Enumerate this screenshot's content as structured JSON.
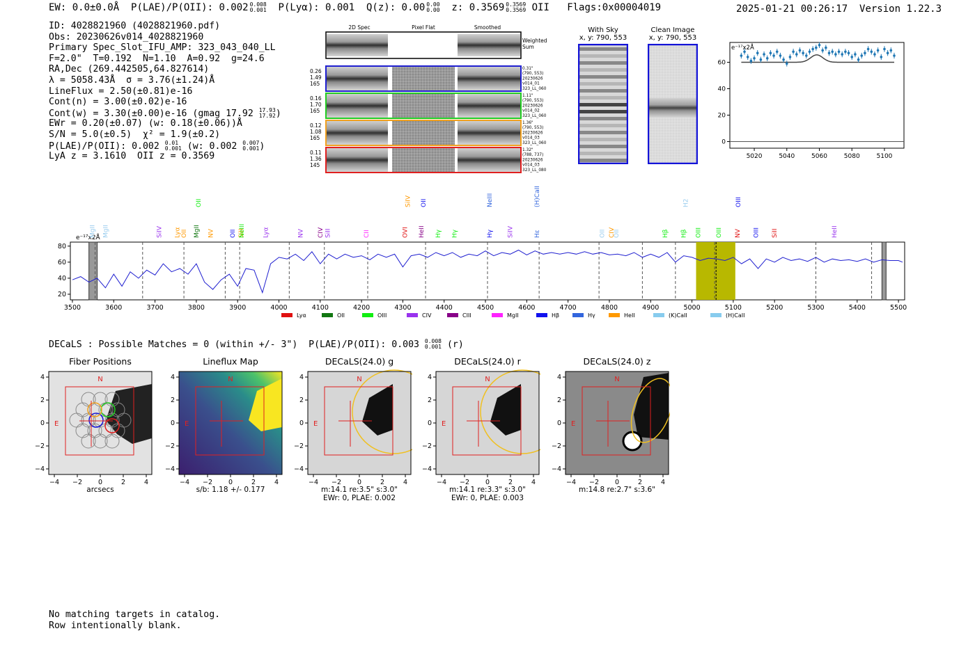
{
  "header": {
    "ew": "EW: 0.0±0.0Å",
    "plae_label": "P(LAE)/P(OII): 0.002",
    "plae_hi": "0.008",
    "plae_lo": "0.001",
    "plya": "P(Lyα): 0.001",
    "qz_label": "Q(z): 0.00",
    "qz_hi": "0.00",
    "qz_lo": "0.00",
    "z_label": "z: 0.3569",
    "z_hi": "0.3569",
    "z_lo": "0.3569",
    "z_line": "OII",
    "flags": "Flags:0x00004019",
    "datetime": "2025-01-21 00:26:17",
    "version": "Version 1.22.3"
  },
  "info": {
    "id": "ID: 4028821960 (4028821960.pdf)",
    "obs": "Obs: 20230626v014_4028821960",
    "primary": "Primary Spec_Slot_IFU_AMP: 323_043_040_LL",
    "params": "F=2.0\"  T=0.192  N=1.10  A=0.92  g=24.6",
    "radec": "RA,Dec (269.442505,64.827614)",
    "lambda": "λ = 5058.43Å  σ = 3.76(±1.24)Å",
    "lineflux": "LineFlux = 2.50(±0.81)e-16",
    "contn": "Cont(n) = 3.00(±0.02)e-16",
    "contw": "Cont(w) = 3.30(±0.00)e-16 (gmag 17.92",
    "contw_hi": "17.93",
    "contw_lo": "17.92",
    "contw_end": ")",
    "ewr": "EWr = 0.20(±0.07) (w: 0.18(±0.06))Å",
    "sn": "S/N = 5.0(±0.5)  χ² = 1.9(±0.2)",
    "plae": "P(LAE)/P(OII): 0.002",
    "plae_hi": "0.01",
    "plae_lo": "0.001",
    "plae_w": "(w: 0.002",
    "plae_w_hi": "0.007",
    "plae_w_lo": "0.001",
    "plae_w_end": ")",
    "z": "LyA z = 3.1610  OII z = 0.3569"
  },
  "cutouts": {
    "col_titles": [
      "2D Spec",
      "Pixel Flat",
      "Smoothed"
    ],
    "weighted_sum": [
      "Weighted",
      "Sum"
    ],
    "rows": [
      {
        "left": [
          "0.26",
          "1.49",
          "165"
        ],
        "right": [
          "0.31\"",
          "(790, 553)",
          "20230626",
          "v014_01",
          "323_LL_060"
        ],
        "color": "#1f1fd0"
      },
      {
        "left": [
          "0.16",
          "1.70",
          "165"
        ],
        "right": [
          "1.11\"",
          "(790, 553)",
          "20230626",
          "v014_02",
          "323_LL_060"
        ],
        "color": "#22cc22"
      },
      {
        "left": [
          "0.12",
          "1.08",
          "165"
        ],
        "right": [
          "1.36\"",
          "(790, 553)",
          "20230626",
          "v014_03",
          "323_LL_060"
        ],
        "color": "#f0a020"
      },
      {
        "left": [
          "0.11",
          "1.36",
          "145"
        ],
        "right": [
          "1.32\"",
          "(788, 737)",
          "20230626",
          "v014_03",
          "323_LL_080"
        ],
        "color": "#e02020"
      }
    ],
    "with_sky": [
      "With Sky",
      "x, y: 790, 553"
    ],
    "clean": [
      "Clean Image",
      "x, y: 790, 553"
    ]
  },
  "colors": {
    "spectrum": "#1f1fd0",
    "highlight": "#b8b800",
    "fit": "#444444",
    "points": "#1f77b4"
  },
  "chart_data": [
    {
      "type": "scatter",
      "title": "",
      "ylabel": "e⁻¹⁷x2Å",
      "xlim": [
        5005,
        5112
      ],
      "ylim": [
        -5,
        75
      ],
      "xticks": [
        5020,
        5040,
        5060,
        5080,
        5100
      ],
      "yticks": [
        0,
        20,
        40,
        60
      ],
      "x": [
        5012,
        5014,
        5016,
        5018,
        5020,
        5022,
        5024,
        5026,
        5028,
        5030,
        5032,
        5034,
        5036,
        5038,
        5040,
        5042,
        5044,
        5046,
        5048,
        5050,
        5052,
        5054,
        5056,
        5058,
        5060,
        5062,
        5064,
        5066,
        5068,
        5070,
        5072,
        5074,
        5076,
        5078,
        5080,
        5082,
        5084,
        5086,
        5088,
        5090,
        5092,
        5094,
        5096,
        5098,
        5100,
        5102,
        5104,
        5106
      ],
      "y": [
        65,
        68,
        64,
        61,
        63,
        67,
        62,
        66,
        63,
        67,
        65,
        68,
        65,
        62,
        59,
        64,
        68,
        66,
        69,
        67,
        65,
        68,
        70,
        71,
        73,
        69,
        71,
        67,
        68,
        66,
        68,
        66,
        68,
        67,
        64,
        66,
        62,
        65,
        67,
        70,
        68,
        66,
        69,
        64,
        70,
        67,
        69,
        65
      ],
      "fit_model": {
        "baseline": 60,
        "amplitude": 5.6,
        "center": 5058.4,
        "sigma": 3.76
      }
    },
    {
      "type": "line",
      "ylabel": "e⁻¹⁷x2Å",
      "xlim": [
        3495,
        5515
      ],
      "ylim": [
        13,
        85
      ],
      "xticks": [
        3500,
        3600,
        3700,
        3800,
        3900,
        4000,
        4100,
        4200,
        4300,
        4400,
        4500,
        4600,
        4700,
        4800,
        4900,
        5000,
        5100,
        5200,
        5300,
        5400,
        5500
      ],
      "yticks": [
        20,
        40,
        60,
        80
      ],
      "highlight_range": [
        5010,
        5105
      ],
      "highlight_center": 5058.4,
      "masked_ranges": [
        [
          3540,
          3560
        ],
        [
          5460,
          5470
        ]
      ],
      "dashed_lines": [
        3555,
        3670,
        3770,
        3870,
        3905,
        4025,
        4110,
        4215,
        4355,
        4505,
        4630,
        4775,
        4880,
        4960,
        5055,
        5300,
        5435
      ],
      "spectrum_x": [
        3500,
        3520,
        3540,
        3560,
        3580,
        3600,
        3620,
        3640,
        3660,
        3680,
        3700,
        3720,
        3740,
        3760,
        3780,
        3800,
        3820,
        3840,
        3860,
        3880,
        3900,
        3920,
        3940,
        3960,
        3980,
        4000,
        4020,
        4040,
        4060,
        4080,
        4100,
        4120,
        4140,
        4160,
        4180,
        4200,
        4220,
        4240,
        4260,
        4280,
        4300,
        4320,
        4340,
        4360,
        4380,
        4400,
        4420,
        4440,
        4460,
        4480,
        4500,
        4520,
        4540,
        4560,
        4580,
        4600,
        4620,
        4640,
        4660,
        4680,
        4700,
        4720,
        4740,
        4760,
        4780,
        4800,
        4820,
        4840,
        4860,
        4880,
        4900,
        4920,
        4940,
        4960,
        4980,
        5000,
        5020,
        5040,
        5060,
        5080,
        5100,
        5120,
        5140,
        5160,
        5180,
        5200,
        5220,
        5240,
        5260,
        5280,
        5300,
        5320,
        5340,
        5360,
        5380,
        5400,
        5420,
        5440,
        5460,
        5480,
        5500,
        5510
      ],
      "spectrum_y": [
        38,
        42,
        35,
        40,
        28,
        45,
        30,
        48,
        40,
        50,
        44,
        58,
        48,
        52,
        45,
        58,
        35,
        26,
        38,
        45,
        30,
        52,
        50,
        22,
        58,
        66,
        64,
        70,
        62,
        73,
        58,
        70,
        64,
        70,
        66,
        68,
        63,
        70,
        66,
        70,
        54,
        68,
        70,
        66,
        72,
        68,
        72,
        66,
        70,
        68,
        74,
        68,
        72,
        70,
        75,
        69,
        74,
        70,
        72,
        70,
        72,
        70,
        73,
        70,
        72,
        69,
        70,
        68,
        72,
        66,
        70,
        66,
        72,
        60,
        68,
        66,
        62,
        65,
        64,
        62,
        66,
        58,
        64,
        52,
        64,
        60,
        66,
        62,
        64,
        61,
        66,
        60,
        64,
        62,
        63,
        61,
        64,
        60,
        63,
        62,
        62,
        60
      ],
      "legend": [
        {
          "label": "Lyα",
          "color": "#e01010"
        },
        {
          "label": "OII",
          "color": "#117711"
        },
        {
          "label": "OIII",
          "color": "#11ee11"
        },
        {
          "label": "CIV",
          "color": "#9933ee"
        },
        {
          "label": "CIII",
          "color": "#880088"
        },
        {
          "label": "MgII",
          "color": "#ff22ff"
        },
        {
          "label": "Hβ",
          "color": "#1111ee"
        },
        {
          "label": "Hγ",
          "color": "#3366dd"
        },
        {
          "label": "HeII",
          "color": "#ff9900"
        },
        {
          "label": "(K)CaII",
          "color": "#88ccee"
        },
        {
          "label": "(H)CaII",
          "color": "#88ccee"
        }
      ],
      "line_labels": [
        {
          "label": "MgII",
          "x": 3548,
          "color": "#99ccee",
          "row": 1
        },
        {
          "label": "MgII",
          "x": 3580,
          "color": "#99ccee",
          "row": 1
        },
        {
          "label": "SiIV",
          "x": 3710,
          "color": "#9933ee",
          "row": 1
        },
        {
          "label": "Lyα",
          "x": 3754,
          "color": "#ff9900",
          "row": 1
        },
        {
          "label": "OII",
          "x": 3770,
          "color": "#ff9900",
          "row": 1
        },
        {
          "label": "MgII",
          "x": 3800,
          "color": "#117711",
          "row": 1
        },
        {
          "label": "OII",
          "x": 3805,
          "color": "#11ee11",
          "row": 0
        },
        {
          "label": "NV",
          "x": 3835,
          "color": "#ff9900",
          "row": 1
        },
        {
          "label": "OII",
          "x": 3888,
          "color": "#1111ee",
          "row": 1
        },
        {
          "label": "SiII",
          "x": 3908,
          "color": "#ff9900",
          "row": 1
        },
        {
          "label": "NeIII",
          "x": 3910,
          "color": "#11ee11",
          "row": 1
        },
        {
          "label": "Lyα",
          "x": 3968,
          "color": "#9933ee",
          "row": 1
        },
        {
          "label": "NV",
          "x": 4052,
          "color": "#9933ee",
          "row": 1
        },
        {
          "label": "CIV",
          "x": 4100,
          "color": "#880088",
          "row": 1
        },
        {
          "label": "SiII",
          "x": 4118,
          "color": "#9933ee",
          "row": 1
        },
        {
          "label": "CII",
          "x": 4212,
          "color": "#ff22ff",
          "row": 1
        },
        {
          "label": "OVI",
          "x": 4305,
          "color": "#e01010",
          "row": 1
        },
        {
          "label": "SiIV",
          "x": 4312,
          "color": "#ff9900",
          "row": 0
        },
        {
          "label": "HeII",
          "x": 4345,
          "color": "#880088",
          "row": 1
        },
        {
          "label": "OII",
          "x": 4350,
          "color": "#1111ee",
          "row": 0
        },
        {
          "label": "Hγ",
          "x": 4385,
          "color": "#11ee11",
          "row": 1
        },
        {
          "label": "Hγ",
          "x": 4425,
          "color": "#11ee11",
          "row": 1
        },
        {
          "label": "NeIII",
          "x": 4510,
          "color": "#3366dd",
          "row": 0
        },
        {
          "label": "Hγ",
          "x": 4510,
          "color": "#1111ee",
          "row": 1
        },
        {
          "label": "SiIV",
          "x": 4560,
          "color": "#9933ee",
          "row": 1
        },
        {
          "label": "(H)CaII",
          "x": 4625,
          "color": "#3366dd",
          "row": 0
        },
        {
          "label": "Hε",
          "x": 4625,
          "color": "#3366dd",
          "row": 1
        },
        {
          "label": "OII",
          "x": 4782,
          "color": "#99ccee",
          "row": 1
        },
        {
          "label": "CIV",
          "x": 4805,
          "color": "#ff9900",
          "row": 1
        },
        {
          "label": "OII",
          "x": 4817,
          "color": "#99ccee",
          "row": 1
        },
        {
          "label": "Hβ",
          "x": 4935,
          "color": "#11ee11",
          "row": 1
        },
        {
          "label": "Hβ",
          "x": 4980,
          "color": "#11ee11",
          "row": 1
        },
        {
          "label": "H2",
          "x": 4985,
          "color": "#99ccee",
          "row": 0
        },
        {
          "label": "OIII",
          "x": 5015,
          "color": "#11ee11",
          "row": 1
        },
        {
          "label": "OIII",
          "x": 5065,
          "color": "#11ee11",
          "row": 1
        },
        {
          "label": "NV",
          "x": 5110,
          "color": "#e01010",
          "row": 1
        },
        {
          "label": "OIII",
          "x": 5112,
          "color": "#1111ee",
          "row": 0
        },
        {
          "label": "OIII",
          "x": 5155,
          "color": "#1111ee",
          "row": 1
        },
        {
          "label": "SiII",
          "x": 5200,
          "color": "#e01010",
          "row": 1
        },
        {
          "label": "HeII",
          "x": 5345,
          "color": "#9933ee",
          "row": 1
        }
      ]
    }
  ],
  "decals": {
    "summary": "DECaLS : Possible Matches = 0 (within +/- 3\")  P(LAE)/P(OII): 0.003",
    "summary_hi": "0.008",
    "summary_lo": "0.001",
    "summary_end": "(r)",
    "panels": [
      {
        "title": "Fiber Positions",
        "caption": [
          "arcsecs"
        ]
      },
      {
        "title": "Lineflux Map",
        "caption": [
          "s/b: 1.18 +/- 0.177"
        ]
      },
      {
        "title": "DECaLS(24.0) g",
        "caption": [
          "m:14.1  re:3.5\"  s:3.0\"",
          "EWr: 0, PLAE: 0.002"
        ]
      },
      {
        "title": "DECaLS(24.0) r",
        "caption": [
          "m:14.1  re:3.3\"  s:3.0\"",
          "EWr: 0, PLAE: 0.003"
        ]
      },
      {
        "title": "DECaLS(24.0) z",
        "caption": [
          "m:14.8  re:2.7\"  s:3.6\""
        ]
      }
    ],
    "axis_ticks": [
      "−4",
      "−2",
      "0",
      "2",
      "4"
    ],
    "compass_n": "N",
    "compass_e": "E"
  },
  "footer": {
    "line1": "No matching targets in catalog.",
    "line2": "Row intentionally blank."
  }
}
